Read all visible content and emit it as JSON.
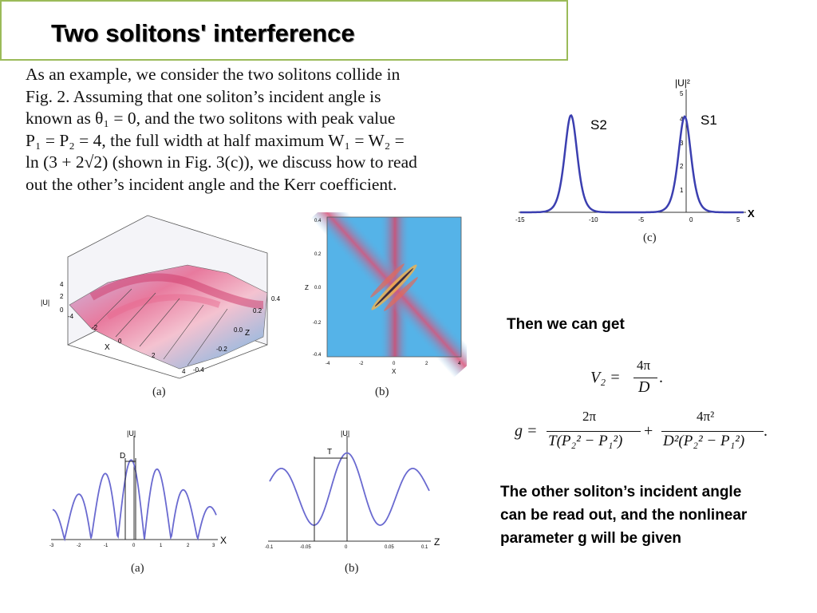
{
  "title": "Two solitons' interference",
  "paragraph": {
    "l1": "As an example, we consider the two solitons collide in",
    "l2": "Fig.  2.  Assuming that one soliton’s incident angle is",
    "l3": "known as θ₁ = 0, and the two solitons with peak value",
    "l4": "P₁ = P₂ = 4, the full width at half maximum W₁ = W₂ =",
    "l5": "ln (3 + 2√2) (shown in Fig. 3(c)), we discuss how to read",
    "l6": "out the other’s incident angle and the Kerr coefficient."
  },
  "side": {
    "then": "Then we can get",
    "conclusion_l1": "The other soliton’s incident angle",
    "conclusion_l2": "can  be read out, and the nonlinear",
    "conclusion_l3": "parameter g  will be given"
  },
  "equations": {
    "v2_lhs": "V₂ =",
    "v2_num": "4π",
    "v2_den": "D",
    "v2_end": ".",
    "g_lhs": "g =",
    "g_t1_num": "2π",
    "g_t1_den": "T(P₂² − P₁²)",
    "g_plus": "+",
    "g_t2_num": "4π²",
    "g_t2_den": "D²(P₂² − P₁²)",
    "g_end": "."
  },
  "captions": {
    "a_top": "(a)",
    "b_top": "(b)",
    "c": "(c)",
    "a_bottom": "(a)",
    "b_bottom": "(b)"
  },
  "fig_c": {
    "ylabel": "|U|²",
    "xlabel": "X",
    "s1": "S1",
    "s2": "S2",
    "xticks": [
      "-15",
      "-10",
      "-5",
      "0",
      "5"
    ],
    "yticks": [
      "5",
      "4",
      "3",
      "2",
      "1"
    ]
  },
  "fig_a_top": {
    "ylabel": "|U|",
    "xlabel": "X",
    "zlabel": "Z",
    "zticks": [
      "0.4",
      "0.2",
      "0.0",
      "-0.2",
      "-0.4"
    ],
    "xticks": [
      "-4",
      "-2",
      "0",
      "2",
      "4"
    ],
    "uticks": [
      "4",
      "2",
      "0"
    ]
  },
  "fig_b_top": {
    "ylabel": "Z",
    "xlabel": "X",
    "yticks": [
      "0.4",
      "0.2",
      "0.0",
      "-0.2",
      "-0.4"
    ],
    "xticks": [
      "-4",
      "-2",
      "0",
      "2",
      "4"
    ]
  },
  "fig_a_bottom": {
    "ylabel": "|U|",
    "xlabel": "X",
    "marker": "D",
    "xticks": [
      "-3",
      "-2",
      "-1",
      "0",
      "1",
      "2",
      "3"
    ]
  },
  "fig_b_bottom": {
    "ylabel": "|U|",
    "xlabel": "Z",
    "marker": "T",
    "xticks": [
      "-0.1",
      "-0.05",
      "0",
      "0.05",
      "0.1"
    ]
  },
  "colors": {
    "border": "#9bbb59",
    "curve": "#3b3fb0",
    "curve_light": "#7b7fd0"
  }
}
